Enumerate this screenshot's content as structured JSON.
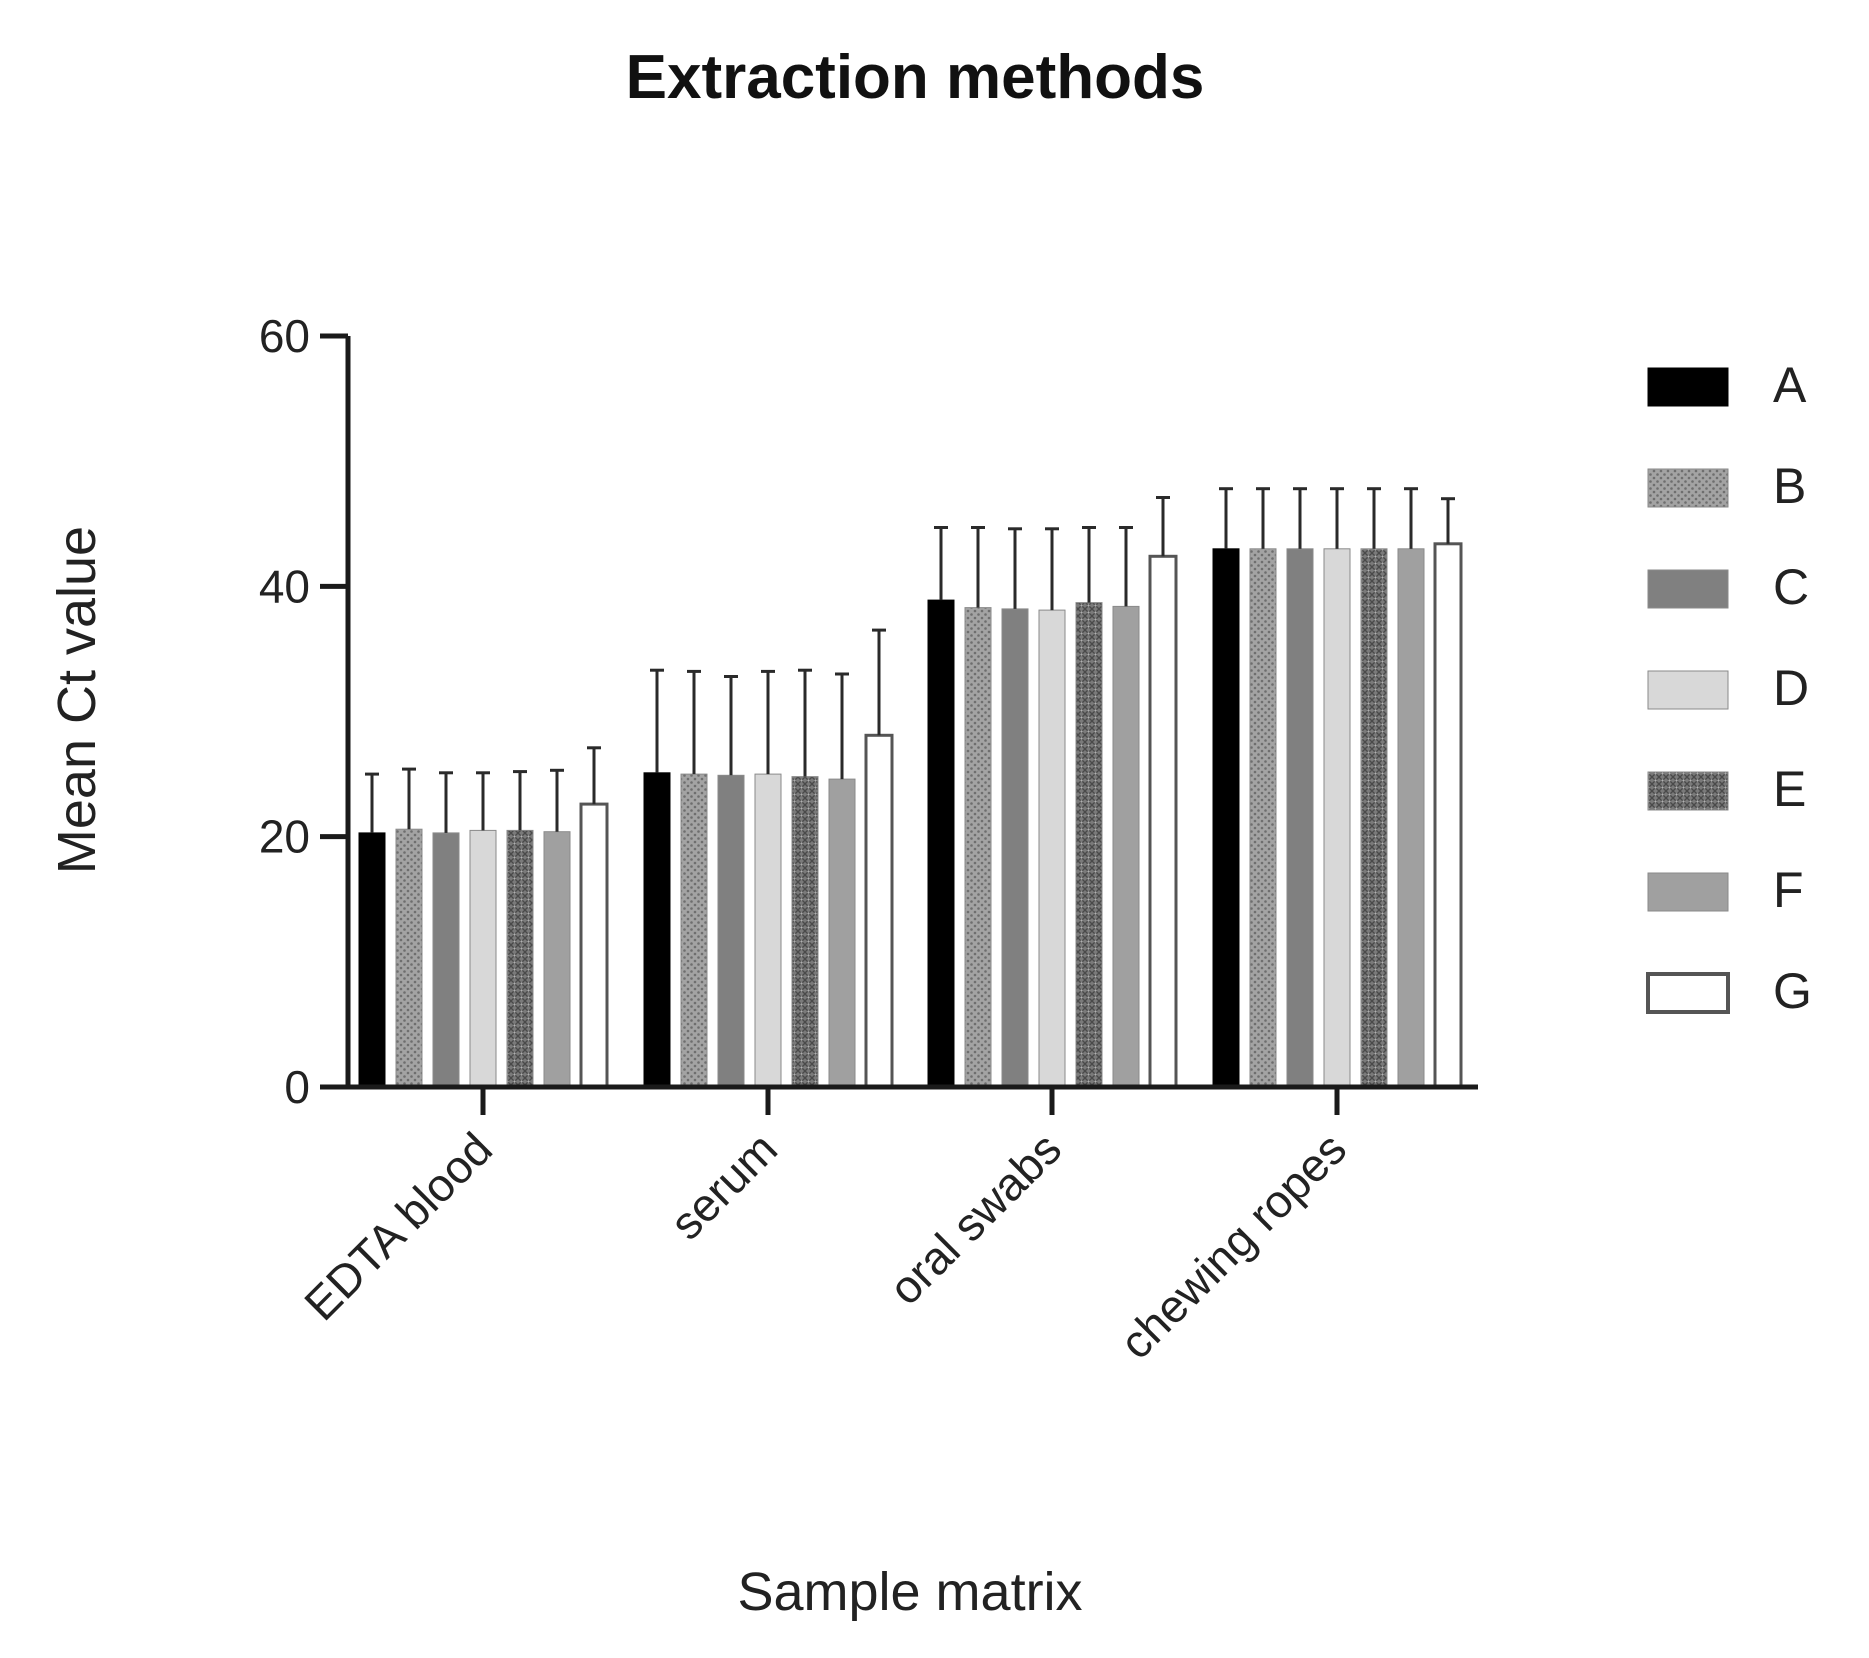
{
  "chart_data": {
    "type": "bar",
    "title": "Extraction methods",
    "xlabel": "Sample matrix",
    "ylabel": "Mean Ct value",
    "ylim": [
      0,
      60
    ],
    "yticks": [
      0,
      20,
      40,
      60
    ],
    "grid": false,
    "legend_position": "right",
    "error_bars": "upper only",
    "categories": [
      "EDTA blood",
      "serum",
      "oral swabs",
      "chewing ropes"
    ],
    "series": [
      {
        "name": "A",
        "fill": "#000000",
        "pattern": "solid",
        "values": [
          20.3,
          25.1,
          38.9,
          43.0
        ],
        "error": [
          4.7,
          8.2,
          5.8,
          4.8
        ]
      },
      {
        "name": "B",
        "fill": "#a3a3a3",
        "pattern": "dots",
        "values": [
          20.6,
          25.0,
          38.3,
          43.0
        ],
        "error": [
          4.8,
          8.2,
          6.4,
          4.8
        ]
      },
      {
        "name": "C",
        "fill": "#808080",
        "pattern": "solid",
        "values": [
          20.3,
          24.9,
          38.2,
          43.0
        ],
        "error": [
          4.8,
          7.9,
          6.4,
          4.8
        ]
      },
      {
        "name": "D",
        "fill": "#d8d8d8",
        "pattern": "solid",
        "values": [
          20.5,
          25.0,
          38.1,
          43.0
        ],
        "error": [
          4.6,
          8.2,
          6.5,
          4.8
        ]
      },
      {
        "name": "E",
        "fill": "#7a7a7a",
        "pattern": "crosshatch",
        "values": [
          20.5,
          24.8,
          38.7,
          43.0
        ],
        "error": [
          4.7,
          8.5,
          6.0,
          4.8
        ]
      },
      {
        "name": "F",
        "fill": "#a0a0a0",
        "pattern": "solid",
        "values": [
          20.4,
          24.6,
          38.4,
          43.0
        ],
        "error": [
          4.9,
          8.4,
          6.3,
          4.8
        ]
      },
      {
        "name": "G",
        "fill": "#ffffff",
        "pattern": "outline",
        "values": [
          22.6,
          28.1,
          42.4,
          43.4
        ],
        "error": [
          4.5,
          8.4,
          4.7,
          3.6
        ]
      }
    ]
  }
}
